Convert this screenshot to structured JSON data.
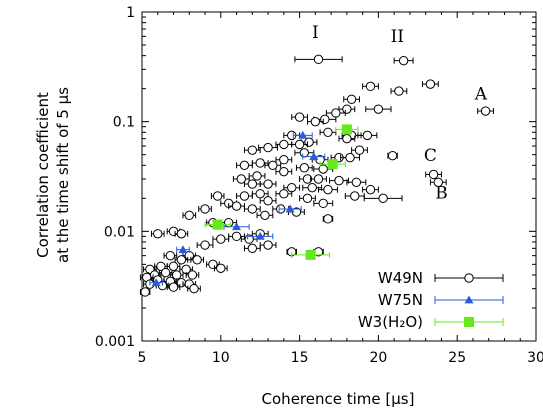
{
  "chart_data": {
    "type": "scatter",
    "xlabel": "Coherence time [μs]",
    "ylabel": [
      "Correlation coefficient",
      "at the time shift of 5 μs"
    ],
    "xlim": [
      5,
      30
    ],
    "ylim": [
      0.001,
      1
    ],
    "yscale": "log",
    "x_ticks": [
      5,
      10,
      15,
      20,
      25,
      30
    ],
    "y_ticks": [
      {
        "value": 0.001,
        "label": "0.001"
      },
      {
        "value": 0.01,
        "label": "0.01"
      },
      {
        "value": 0.1,
        "label": "0.1"
      },
      {
        "value": 1,
        "label": "1"
      }
    ],
    "legend_position": "bottom-right",
    "series": [
      {
        "name": "W49N",
        "marker": "circle-open",
        "color": "#000000",
        "points": [
          [
            16.2,
            0.37,
            1.5
          ],
          [
            21.6,
            0.36,
            0.6
          ],
          [
            23.3,
            0.22,
            0.5
          ],
          [
            19.5,
            0.21,
            0.5
          ],
          [
            21.3,
            0.19,
            0.5
          ],
          [
            26.8,
            0.125,
            0.5
          ],
          [
            20.0,
            0.13,
            0.8
          ],
          [
            18.3,
            0.16,
            0.5
          ],
          [
            18.0,
            0.13,
            0.5
          ],
          [
            17.3,
            0.12,
            0.6
          ],
          [
            16.6,
            0.105,
            0.7
          ],
          [
            16.0,
            0.1,
            0.5
          ],
          [
            15.0,
            0.11,
            0.5
          ],
          [
            16.8,
            0.08,
            0.5
          ],
          [
            18.3,
            0.075,
            0.6
          ],
          [
            19.3,
            0.075,
            0.6
          ],
          [
            18.0,
            0.07,
            0.5
          ],
          [
            15.6,
            0.065,
            0.5
          ],
          [
            14.5,
            0.075,
            0.5
          ],
          [
            14.0,
            0.062,
            0.5
          ],
          [
            15.0,
            0.062,
            0.5
          ],
          [
            13.0,
            0.058,
            0.6
          ],
          [
            12.0,
            0.055,
            0.5
          ],
          [
            15.3,
            0.052,
            0.6
          ],
          [
            18.8,
            0.055,
            0.5
          ],
          [
            16.3,
            0.045,
            0.5
          ],
          [
            17.5,
            0.047,
            0.5
          ],
          [
            14.0,
            0.045,
            0.5
          ],
          [
            12.5,
            0.042,
            0.5
          ],
          [
            11.5,
            0.04,
            0.5
          ],
          [
            13.3,
            0.04,
            0.5
          ],
          [
            15.3,
            0.038,
            0.5
          ],
          [
            16.5,
            0.037,
            0.6
          ],
          [
            18.2,
            0.047,
            0.6
          ],
          [
            14.0,
            0.035,
            0.5
          ],
          [
            12.3,
            0.032,
            0.5
          ],
          [
            11.3,
            0.03,
            0.5
          ],
          [
            15.5,
            0.03,
            0.5
          ],
          [
            16.2,
            0.03,
            0.5
          ],
          [
            17.5,
            0.029,
            0.6
          ],
          [
            18.6,
            0.028,
            0.6
          ],
          [
            13.0,
            0.027,
            0.5
          ],
          [
            12.0,
            0.027,
            0.5
          ],
          [
            14.5,
            0.025,
            0.5
          ],
          [
            15.8,
            0.025,
            0.6
          ],
          [
            16.8,
            0.024,
            0.6
          ],
          [
            18.5,
            0.021,
            0.6
          ],
          [
            19.5,
            0.024,
            0.5
          ],
          [
            14.0,
            0.022,
            0.5
          ],
          [
            12.5,
            0.022,
            0.5
          ],
          [
            11.5,
            0.021,
            0.5
          ],
          [
            15.5,
            0.02,
            0.5
          ],
          [
            13.0,
            0.019,
            0.5
          ],
          [
            16.5,
            0.018,
            0.6
          ],
          [
            20.3,
            0.02,
            1.2
          ],
          [
            9.8,
            0.021,
            0.4
          ],
          [
            10.5,
            0.018,
            0.5
          ],
          [
            11.0,
            0.017,
            0.5
          ],
          [
            9.0,
            0.016,
            0.4
          ],
          [
            12.0,
            0.016,
            0.5
          ],
          [
            13.8,
            0.016,
            0.5
          ],
          [
            14.8,
            0.015,
            0.5
          ],
          [
            12.8,
            0.014,
            0.5
          ],
          [
            8.0,
            0.014,
            0.4
          ],
          [
            10.5,
            0.012,
            0.5
          ],
          [
            16.8,
            0.013,
            0.3
          ],
          [
            9.5,
            0.012,
            0.4
          ],
          [
            7.0,
            0.01,
            0.4
          ],
          [
            6.0,
            0.0095,
            0.4
          ],
          [
            7.5,
            0.0095,
            0.4
          ],
          [
            12.5,
            0.0095,
            0.5
          ],
          [
            13.0,
            0.0075,
            0.5
          ],
          [
            14.5,
            0.0065,
            0.3
          ],
          [
            16.2,
            0.0065,
            0.3
          ],
          [
            10.0,
            0.0085,
            0.5
          ],
          [
            11.0,
            0.009,
            0.5
          ],
          [
            11.8,
            0.0085,
            0.5
          ],
          [
            9.0,
            0.0075,
            0.5
          ],
          [
            12.0,
            0.007,
            0.5
          ],
          [
            8.0,
            0.006,
            0.4
          ],
          [
            7.5,
            0.0055,
            0.4
          ],
          [
            6.8,
            0.006,
            0.4
          ],
          [
            8.5,
            0.0055,
            0.4
          ],
          [
            6.2,
            0.0048,
            0.4
          ],
          [
            7.0,
            0.0048,
            0.4
          ],
          [
            7.8,
            0.0045,
            0.4
          ],
          [
            5.5,
            0.0045,
            0.4
          ],
          [
            6.5,
            0.0042,
            0.4
          ],
          [
            5.8,
            0.004,
            0.4
          ],
          [
            7.2,
            0.004,
            0.4
          ],
          [
            8.2,
            0.004,
            0.4
          ],
          [
            5.3,
            0.0038,
            0.4
          ],
          [
            6.0,
            0.0036,
            0.4
          ],
          [
            6.8,
            0.0035,
            0.4
          ],
          [
            7.5,
            0.0034,
            0.4
          ],
          [
            8.0,
            0.0033,
            0.4
          ],
          [
            5.5,
            0.0033,
            0.4
          ],
          [
            6.3,
            0.0032,
            0.4
          ],
          [
            7.0,
            0.0031,
            0.4
          ],
          [
            8.3,
            0.003,
            0.4
          ],
          [
            9.5,
            0.005,
            0.4
          ],
          [
            10.0,
            0.0046,
            0.4
          ],
          [
            5.2,
            0.0028,
            0.3
          ],
          [
            20.9,
            0.049,
            0.3
          ],
          [
            23.5,
            0.033,
            0.5
          ],
          [
            23.8,
            0.028,
            0.5
          ]
        ]
      },
      {
        "name": "W75N",
        "marker": "triangle",
        "color": "#2b5bd8",
        "points": [
          [
            15.2,
            0.075,
            0.6
          ],
          [
            15.9,
            0.048,
            0.7
          ],
          [
            11.0,
            0.011,
            0.8
          ],
          [
            14.4,
            0.016,
            0.7
          ],
          [
            12.5,
            0.009,
            0.8
          ],
          [
            7.6,
            0.0068,
            0.4
          ],
          [
            5.9,
            0.0034,
            0.4
          ]
        ]
      },
      {
        "name": "W3(H2O)",
        "name_display": "W3(H₂O)",
        "marker": "square",
        "color": "#66e81e",
        "points": [
          [
            18.0,
            0.085,
            0.7
          ],
          [
            17.1,
            0.041,
            0.8
          ],
          [
            9.8,
            0.0115,
            0.8
          ],
          [
            15.7,
            0.0061,
            1.2
          ]
        ]
      }
    ],
    "annotations": [
      {
        "text": "I",
        "x": 16.0,
        "y": 0.58
      },
      {
        "text": "II",
        "x": 21.2,
        "y": 0.53
      },
      {
        "text": "A",
        "x": 26.5,
        "y": 0.16
      },
      {
        "text": "C",
        "x": 23.3,
        "y": 0.044
      },
      {
        "text": "B",
        "x": 24.0,
        "y": 0.02
      }
    ]
  }
}
